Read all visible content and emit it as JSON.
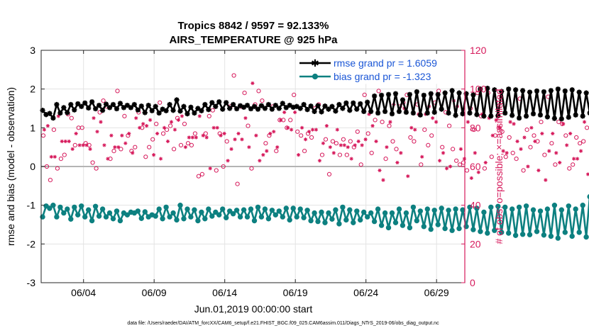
{
  "chart_data": {
    "type": "line",
    "title": [
      "Tropics 8842 / 9597 = 92.133%",
      "AIRS_TEMPERATURE @ 925 hPa"
    ],
    "xlabel": "Jun.01,2019 00:00:00 start",
    "ylabel": "rmse and bias (model - observation)",
    "ylabel_right": "# of obs: o=possible; ×=assimilated",
    "x_ticks": [
      "06/04",
      "06/09",
      "06/14",
      "06/19",
      "06/24",
      "06/29"
    ],
    "y_ticks": [
      "3",
      "2",
      "1",
      "0",
      "-1",
      "-2",
      "-3"
    ],
    "y_ticks_right": [
      "120",
      "100",
      "80",
      "60",
      "40",
      "20",
      "0"
    ],
    "xlim": [
      1.0,
      31.0
    ],
    "x_tick_values": [
      4,
      9,
      14,
      19,
      24,
      29
    ],
    "ylim": [
      -3,
      3
    ],
    "ylim_right": [
      0,
      120
    ],
    "step_days": 0.25,
    "grid": true,
    "legend_position": "top-right",
    "series": [
      {
        "name": "rmse grand pr = 1.6059",
        "axis": "left",
        "color": "#000000",
        "marker": "asterisk",
        "values": [
          1.45,
          1.34,
          1.37,
          1.25,
          1.6,
          1.38,
          1.52,
          1.39,
          1.6,
          1.46,
          1.62,
          1.55,
          1.64,
          1.51,
          1.67,
          1.49,
          1.58,
          1.45,
          1.61,
          1.52,
          1.6,
          1.49,
          1.63,
          1.52,
          1.58,
          1.52,
          1.6,
          1.46,
          1.56,
          1.39,
          1.58,
          1.44,
          1.55,
          1.38,
          1.48,
          1.44,
          1.6,
          1.45,
          1.72,
          1.43,
          1.55,
          1.36,
          1.53,
          1.38,
          1.5,
          1.44,
          1.6,
          1.47,
          1.65,
          1.55,
          1.67,
          1.48,
          1.65,
          1.5,
          1.6,
          1.49,
          1.57,
          1.53,
          1.58,
          1.49,
          1.55,
          1.48,
          1.57,
          1.5,
          1.6,
          1.48,
          1.58,
          1.5,
          1.63,
          1.52,
          1.58,
          1.53,
          1.55,
          1.5,
          1.6,
          1.47,
          1.56,
          1.42,
          1.57,
          1.41,
          1.56,
          1.48,
          1.55,
          1.43,
          1.6,
          1.5,
          1.64,
          1.45,
          1.64,
          1.48,
          1.62,
          1.42,
          1.66,
          1.42,
          1.82,
          1.38,
          1.84,
          1.42,
          1.86,
          1.36,
          1.88,
          1.42,
          1.72,
          1.4,
          1.86,
          1.38,
          1.93,
          1.33,
          1.84,
          1.38,
          1.88,
          1.4,
          1.86,
          1.48,
          1.9,
          1.38,
          1.96,
          1.32,
          1.9,
          1.36,
          1.88,
          1.38,
          1.85,
          1.34,
          2.0,
          1.3,
          2.02,
          1.3,
          1.98,
          1.31,
          1.94,
          1.38,
          2.0,
          1.32,
          1.98,
          1.25,
          1.96,
          1.3,
          1.92,
          1.36,
          1.95,
          1.33,
          1.93,
          1.28,
          1.96,
          1.24,
          2.0,
          1.23,
          1.95,
          1.27,
          1.98,
          1.33,
          1.92,
          1.3,
          1.9,
          1.38,
          1.96,
          1.32,
          2.04,
          1.36,
          2.05,
          1.52,
          1.56,
          1.55,
          1.6
        ]
      },
      {
        "name": "bias grand pr = -1.323",
        "axis": "left",
        "color": "#0d8080",
        "marker": "circle",
        "values": [
          -1.3,
          -1.02,
          -1.08,
          -1.0,
          -1.3,
          -1.05,
          -1.2,
          -1.1,
          -1.36,
          -1.05,
          -1.25,
          -1.02,
          -1.3,
          -1.12,
          -1.4,
          -1.03,
          -1.28,
          -1.1,
          -1.3,
          -1.2,
          -1.35,
          -1.15,
          -1.4,
          -1.2,
          -1.25,
          -1.18,
          -1.2,
          -1.15,
          -1.34,
          -1.17,
          -1.3,
          -1.25,
          -1.28,
          -1.1,
          -1.35,
          -1.05,
          -1.3,
          -1.2,
          -1.38,
          -1.0,
          -1.35,
          -1.1,
          -1.3,
          -1.12,
          -1.4,
          -1.18,
          -1.35,
          -1.1,
          -1.28,
          -1.18,
          -1.25,
          -1.1,
          -1.32,
          -1.15,
          -1.22,
          -1.13,
          -1.3,
          -1.12,
          -1.3,
          -1.1,
          -1.4,
          -1.05,
          -1.3,
          -1.1,
          -1.35,
          -1.13,
          -1.25,
          -1.15,
          -1.3,
          -1.08,
          -1.38,
          -1.08,
          -1.3,
          -1.1,
          -1.32,
          -1.13,
          -1.4,
          -1.2,
          -1.42,
          -1.18,
          -1.45,
          -1.2,
          -1.36,
          -1.12,
          -1.48,
          -1.05,
          -1.38,
          -1.12,
          -1.45,
          -1.15,
          -1.38,
          -1.18,
          -1.3,
          -1.2,
          -1.42,
          -1.1,
          -1.52,
          -1.2,
          -1.58,
          -1.2,
          -1.45,
          -1.1,
          -1.52,
          -1.2,
          -1.58,
          -1.05,
          -1.4,
          -1.15,
          -1.55,
          -1.1,
          -1.62,
          -1.13,
          -1.5,
          -1.08,
          -1.6,
          -1.13,
          -1.65,
          -1.1,
          -1.6,
          -1.12,
          -1.55,
          -1.05,
          -1.63,
          -1.08,
          -1.68,
          -1.18,
          -1.72,
          -1.05,
          -1.65,
          -1.03,
          -1.7,
          -1.05,
          -1.72,
          -1.1,
          -1.78,
          -1.05,
          -1.75,
          -1.02,
          -1.76,
          -1.12,
          -1.68,
          -1.15,
          -1.77,
          -1.1,
          -1.8,
          -1.0,
          -1.85,
          -1.12,
          -1.7,
          -1.02,
          -1.8,
          -1.1,
          -1.7,
          -1.0,
          -1.82,
          -0.78,
          -1.76,
          -1.22,
          -1.72,
          -1.1,
          -1.85,
          -1.2,
          -1.77,
          -1.02,
          -1.84,
          -1.3,
          -1.6,
          -1.88,
          -1.72,
          -1.95,
          -1.05
        ]
      }
    ],
    "obs_possible": [
      76,
      60,
      53,
      79,
      59,
      64,
      66,
      87,
      85,
      71,
      80,
      80,
      72,
      71,
      62,
      59,
      88,
      94,
      91,
      64,
      68,
      99,
      69,
      86,
      76,
      68,
      70,
      88,
      80,
      65,
      70,
      74,
      82,
      93,
      77,
      79,
      81,
      69,
      85,
      71,
      82,
      72,
      71,
      77,
      55,
      56,
      77,
      86,
      89,
      58,
      77,
      60,
      73,
      91,
      107,
      51,
      91,
      98,
      81,
      59,
      92,
      99,
      94,
      72,
      76,
      91,
      68,
      84,
      84,
      80,
      84,
      97,
      78,
      76,
      68,
      77,
      75,
      90,
      92,
      66,
      74,
      56,
      73,
      72,
      66,
      74,
      66,
      73,
      70,
      78,
      61,
      97,
      77,
      67,
      84,
      99,
      83,
      64,
      81,
      73,
      69,
      91,
      93,
      97,
      75,
      73,
      92,
      61,
      79,
      71,
      76,
      93,
      99,
      70,
      88,
      81,
      69,
      63,
      61,
      62,
      58,
      90,
      79,
      98,
      86,
      59,
      98,
      65,
      76,
      80,
      78,
      65,
      75,
      67,
      64,
      95,
      58,
      79,
      70,
      76,
      73,
      83,
      66,
      96,
      72,
      61,
      83,
      82,
      76,
      59,
      61,
      75,
      72,
      73,
      80,
      90,
      68,
      78,
      56,
      84,
      74,
      68,
      68,
      96,
      83,
      68,
      69,
      61
    ],
    "obs_assimilated": [
      79,
      81,
      65,
      65,
      86,
      73,
      73,
      73,
      69,
      77,
      71,
      71,
      71,
      69,
      85,
      78,
      83,
      71,
      64,
      76,
      70,
      70,
      76,
      72,
      77,
      67,
      85,
      80,
      82,
      81,
      84,
      66,
      77,
      64,
      80,
      73,
      83,
      79,
      84,
      86,
      70,
      75,
      75,
      75,
      86,
      76,
      75,
      59,
      80,
      80,
      76,
      77,
      63,
      69,
      74,
      77,
      74,
      85,
      70,
      103,
      76,
      63,
      66,
      68,
      77,
      78,
      70,
      84,
      88,
      80,
      79,
      88,
      66,
      80,
      74,
      78,
      79,
      79,
      63,
      72,
      81,
      70,
      67,
      79,
      71,
      71,
      70,
      64,
      71,
      73,
      71,
      74,
      87,
      81,
      73,
      58,
      53,
      70,
      83,
      92,
      62,
      67,
      90,
      55,
      80,
      79,
      87,
      65,
      87,
      91,
      85,
      83,
      63,
      67,
      59,
      60,
      94,
      91,
      69,
      64,
      83,
      54,
      67,
      57,
      87,
      62,
      85,
      76,
      84,
      80,
      68,
      67,
      83,
      82,
      73,
      69,
      75,
      60,
      80,
      73,
      58,
      77,
      53,
      68,
      77,
      67,
      62,
      82,
      71,
      77,
      64,
      64,
      68,
      83,
      56,
      81,
      75,
      75,
      77,
      83,
      77,
      73,
      85,
      73,
      65,
      82,
      69,
      72
    ],
    "legend": [
      "rmse grand pr = 1.6059",
      "bias grand pr = -1.323"
    ],
    "footnote": "data file: /Users/raeder/DAI/ATM_forcXX/CAM6_setup/f.e21.FHIST_BGC.f09_025.CAM6assim.011/Diags_NTrS_2019-06/obs_diag_output.nc",
    "colors": {
      "rmse": "#000000",
      "bias": "#0d8080",
      "obs": "#d6195b",
      "legend_text": "#1a56d6"
    }
  }
}
